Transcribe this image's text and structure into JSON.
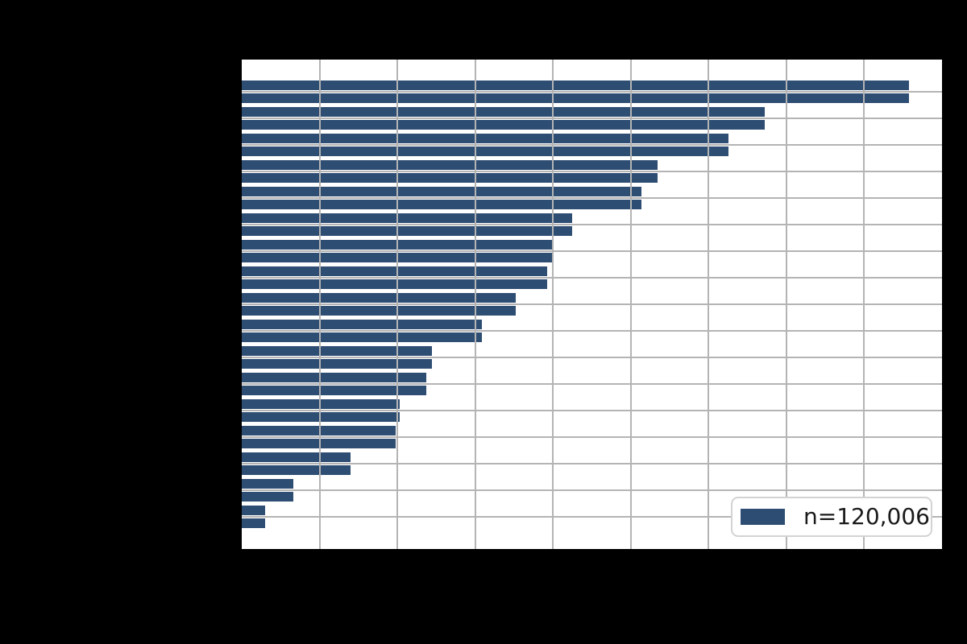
{
  "figure": {
    "background_color": "#000000",
    "note": "Title and axis tick labels are drawn in black on the black figure background and are not legible in the screenshot."
  },
  "chart_data": {
    "type": "bar",
    "orientation": "horizontal",
    "title": "",
    "xlabel": "",
    "ylabel": "",
    "axes_background": "#ffffff",
    "bar_color": "#2e4d73",
    "grid": true,
    "grid_color": "#b4b4b4",
    "grid_above_bars": true,
    "x_axis": {
      "labels_visible": false,
      "gridline_count": 9,
      "range_gridline_units": [
        0,
        9
      ]
    },
    "y_axis": {
      "labels_visible": false,
      "tick_count": 17
    },
    "bars_per_tick": 2,
    "note": "Each of the 17 y ticks has two adjacent bars of identical length (same color); values measured in x-gridline units since tick labels are not visible.",
    "categories": [
      "",
      "",
      "",
      "",
      "",
      "",
      "",
      "",
      "",
      "",
      "",
      "",
      "",
      "",
      "",
      "",
      ""
    ],
    "values_gridline_units": [
      8.58,
      6.72,
      6.26,
      5.34,
      5.14,
      4.25,
      4.01,
      3.92,
      3.52,
      3.09,
      2.44,
      2.37,
      2.03,
      1.98,
      1.4,
      0.66,
      0.3
    ],
    "legend": {
      "label": "n=120,006",
      "position": "lower right",
      "swatch_color": "#2e4d73",
      "background": "#ffffff",
      "border_color": "#d3d3d3",
      "text_color": "#1a1a1a"
    }
  }
}
